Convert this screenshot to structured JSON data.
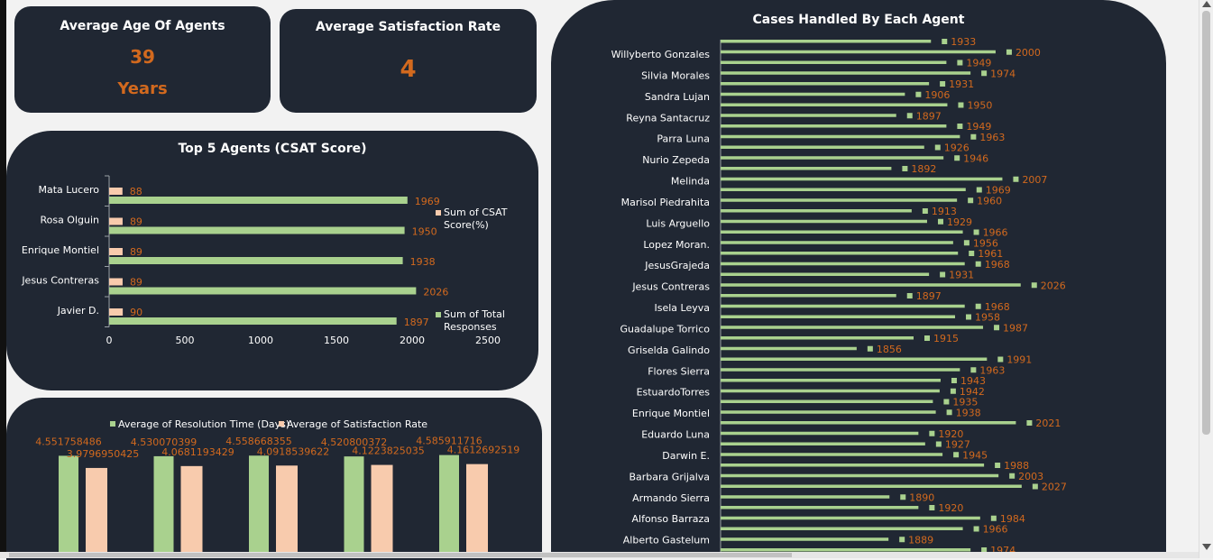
{
  "colors": {
    "card_bg": "#202733",
    "accent_orange": "#d2691e",
    "green_bar": "#a9d18e",
    "peach_bar": "#f8cbad"
  },
  "kpi": {
    "age": {
      "title": "Average Age Of Agents",
      "value": "39",
      "unit": "Years"
    },
    "satisfaction": {
      "title": "Average Satisfaction Rate",
      "value": "4"
    }
  },
  "top5": {
    "title": "Top 5 Agents (CSAT Score)"
  },
  "resolution": {},
  "cases": {
    "title": "Cases Handled By Each Agent"
  },
  "chart_data": [
    {
      "id": "top5",
      "type": "bar",
      "orientation": "horizontal",
      "title": "Top 5 Agents (CSAT Score)",
      "categories": [
        "Mata Lucero",
        "Rosa Olguin",
        "Enrique Montiel",
        "Jesus Contreras",
        "Javier D."
      ],
      "series": [
        {
          "name": "Sum of CSAT Score(%)",
          "values": [
            88,
            89,
            89,
            89,
            90
          ],
          "color": "#f8cbad"
        },
        {
          "name": "Sum of Total Responses",
          "values": [
            1969,
            1950,
            1938,
            2026,
            1897
          ],
          "color": "#a9d18e"
        }
      ],
      "xlim": [
        0,
        2500
      ],
      "xticks": [
        "0",
        "500",
        "1000",
        "1500",
        "2000",
        "2500"
      ],
      "legend": "right"
    },
    {
      "id": "resolution",
      "type": "bar",
      "legend": "top",
      "series": [
        {
          "name": "Average of Resolution Time (Days)",
          "values": [
            4.551758486,
            4.530070399,
            4.558668355,
            4.520800372,
            4.585911716
          ],
          "labels": [
            "4.551758486",
            "4.530070399",
            "4.558668355",
            "4.520800372",
            "4.585911716"
          ],
          "color": "#a9d18e"
        },
        {
          "name": "Average of Satisfaction Rate",
          "values": [
            3.9796950425,
            4.0681193429,
            4.0918539622,
            4.1223825035,
            4.1612692519
          ],
          "labels": [
            "3.9796950425",
            "4.0681193429",
            "4.0918539622",
            "4.1223825035",
            "4.1612692519"
          ],
          "color": "#f8cbad"
        }
      ]
    },
    {
      "id": "cases",
      "type": "bar",
      "orientation": "horizontal",
      "title": "Cases Handled By Each Agent",
      "category_labels": [
        "Willyberto Gonzales",
        "Silvia Morales",
        "Sandra Lujan",
        "Reyna Santacruz",
        "Parra Luna",
        "Nurio Zepeda",
        "Melinda",
        "Marisol Piedrahita",
        "Luis Arguello",
        "Lopez Moran.",
        "JesusGrajeda",
        "Jesus Contreras",
        "Isela Leyva",
        "Guadalupe Torrico",
        "Griselda Galindo",
        "Flores Sierra",
        "EstuardoTorres",
        "Enrique Montiel",
        "Eduardo Luna",
        "Darwin E.",
        "Barbara Grijalva",
        "Armando Sierra",
        "Alfonso Barraza",
        "Alberto Gastelum"
      ],
      "values": [
        1933,
        2000,
        1949,
        1974,
        1931,
        1906,
        1950,
        1897,
        1949,
        1963,
        1926,
        1946,
        1892,
        2007,
        1969,
        1960,
        1913,
        1929,
        1966,
        1956,
        1961,
        1968,
        1931,
        2026,
        1897,
        1968,
        1958,
        1987,
        1915,
        1856,
        1991,
        1963,
        1943,
        1942,
        1935,
        1938,
        2021,
        1920,
        1927,
        1945,
        1988,
        2003,
        2027,
        1890,
        1920,
        1984,
        1966,
        1889,
        1974
      ],
      "color": "#a9d18e"
    }
  ]
}
